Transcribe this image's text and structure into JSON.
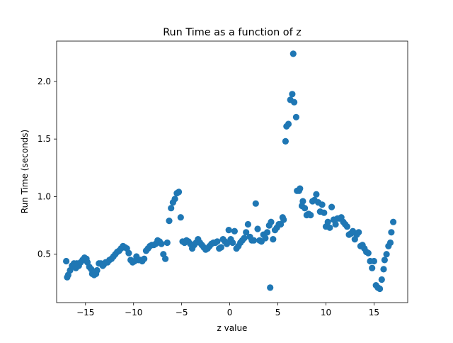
{
  "chart_data": {
    "type": "scatter",
    "title": "Run Time as a function of z",
    "xlabel": "z value",
    "ylabel": "Run Time (seconds)",
    "xlim": [
      -18.0,
      18.5
    ],
    "ylim": [
      0.08,
      2.35
    ],
    "xticks": [
      -15,
      -10,
      -5,
      0,
      5,
      10,
      15
    ],
    "xtick_labels": [
      "−15",
      "−10",
      "−5",
      "0",
      "5",
      "10",
      "15"
    ],
    "yticks": [
      0.5,
      1.0,
      1.5,
      2.0
    ],
    "ytick_labels": [
      "0.5",
      "1.0",
      "1.5",
      "2.0"
    ],
    "grid": false,
    "legend": "none",
    "marker_color": "#1f77b4",
    "series": [
      {
        "points": [
          [
            -17.0,
            0.44
          ],
          [
            -16.9,
            0.3
          ],
          [
            -16.8,
            0.32
          ],
          [
            -16.6,
            0.36
          ],
          [
            -16.4,
            0.4
          ],
          [
            -16.2,
            0.42
          ],
          [
            -16.0,
            0.38
          ],
          [
            -15.9,
            0.42
          ],
          [
            -15.7,
            0.4
          ],
          [
            -15.5,
            0.43
          ],
          [
            -15.3,
            0.45
          ],
          [
            -15.1,
            0.47
          ],
          [
            -14.9,
            0.46
          ],
          [
            -14.8,
            0.43
          ],
          [
            -14.6,
            0.39
          ],
          [
            -14.4,
            0.37
          ],
          [
            -14.3,
            0.33
          ],
          [
            -14.1,
            0.32
          ],
          [
            -13.9,
            0.33
          ],
          [
            -13.8,
            0.36
          ],
          [
            -13.6,
            0.42
          ],
          [
            -13.4,
            0.42
          ],
          [
            -13.2,
            0.4
          ],
          [
            -13.1,
            0.41
          ],
          [
            -12.9,
            0.43
          ],
          [
            -12.7,
            0.43
          ],
          [
            -12.5,
            0.45
          ],
          [
            -12.3,
            0.46
          ],
          [
            -12.1,
            0.48
          ],
          [
            -11.9,
            0.5
          ],
          [
            -11.7,
            0.52
          ],
          [
            -11.5,
            0.53
          ],
          [
            -11.3,
            0.55
          ],
          [
            -11.1,
            0.57
          ],
          [
            -10.9,
            0.56
          ],
          [
            -10.7,
            0.55
          ],
          [
            -10.5,
            0.51
          ],
          [
            -10.3,
            0.45
          ],
          [
            -10.1,
            0.43
          ],
          [
            -9.9,
            0.44
          ],
          [
            -9.7,
            0.48
          ],
          [
            -9.5,
            0.45
          ],
          [
            -9.3,
            0.45
          ],
          [
            -9.1,
            0.44
          ],
          [
            -8.9,
            0.46
          ],
          [
            -8.7,
            0.53
          ],
          [
            -8.5,
            0.55
          ],
          [
            -8.3,
            0.57
          ],
          [
            -8.1,
            0.58
          ],
          [
            -7.9,
            0.58
          ],
          [
            -7.7,
            0.59
          ],
          [
            -7.5,
            0.62
          ],
          [
            -7.3,
            0.61
          ],
          [
            -7.1,
            0.59
          ],
          [
            -6.9,
            0.5
          ],
          [
            -6.7,
            0.46
          ],
          [
            -6.5,
            0.6
          ],
          [
            -6.3,
            0.79
          ],
          [
            -6.1,
            0.9
          ],
          [
            -5.9,
            0.95
          ],
          [
            -5.7,
            0.98
          ],
          [
            -5.5,
            1.03
          ],
          [
            -5.3,
            1.04
          ],
          [
            -5.1,
            0.82
          ],
          [
            -4.9,
            0.61
          ],
          [
            -4.7,
            0.6
          ],
          [
            -4.5,
            0.62
          ],
          [
            -4.3,
            0.61
          ],
          [
            -4.1,
            0.59
          ],
          [
            -3.9,
            0.55
          ],
          [
            -3.7,
            0.58
          ],
          [
            -3.5,
            0.6
          ],
          [
            -3.3,
            0.63
          ],
          [
            -3.1,
            0.6
          ],
          [
            -2.9,
            0.58
          ],
          [
            -2.7,
            0.56
          ],
          [
            -2.5,
            0.54
          ],
          [
            -2.3,
            0.55
          ],
          [
            -2.1,
            0.57
          ],
          [
            -1.9,
            0.59
          ],
          [
            -1.7,
            0.6
          ],
          [
            -1.5,
            0.6
          ],
          [
            -1.3,
            0.61
          ],
          [
            -1.1,
            0.55
          ],
          [
            -0.9,
            0.56
          ],
          [
            -0.7,
            0.63
          ],
          [
            -0.5,
            0.61
          ],
          [
            -0.3,
            0.59
          ],
          [
            -0.1,
            0.71
          ],
          [
            0.1,
            0.63
          ],
          [
            0.3,
            0.6
          ],
          [
            0.5,
            0.7
          ],
          [
            0.7,
            0.55
          ],
          [
            0.9,
            0.57
          ],
          [
            1.1,
            0.6
          ],
          [
            1.3,
            0.62
          ],
          [
            1.5,
            0.64
          ],
          [
            1.7,
            0.69
          ],
          [
            1.9,
            0.76
          ],
          [
            2.1,
            0.65
          ],
          [
            2.3,
            0.62
          ],
          [
            2.5,
            0.62
          ],
          [
            2.7,
            0.94
          ],
          [
            2.9,
            0.72
          ],
          [
            3.1,
            0.62
          ],
          [
            3.3,
            0.61
          ],
          [
            3.5,
            0.67
          ],
          [
            3.7,
            0.64
          ],
          [
            3.9,
            0.69
          ],
          [
            4.1,
            0.75
          ],
          [
            4.2,
            0.21
          ],
          [
            4.3,
            0.78
          ],
          [
            4.5,
            0.63
          ],
          [
            4.7,
            0.71
          ],
          [
            4.9,
            0.73
          ],
          [
            5.1,
            0.76
          ],
          [
            5.3,
            0.76
          ],
          [
            5.5,
            0.82
          ],
          [
            5.6,
            0.8
          ],
          [
            5.8,
            1.48
          ],
          [
            5.9,
            1.61
          ],
          [
            6.1,
            1.63
          ],
          [
            6.3,
            1.84
          ],
          [
            6.5,
            1.89
          ],
          [
            6.6,
            2.24
          ],
          [
            6.7,
            1.82
          ],
          [
            6.9,
            1.69
          ],
          [
            7.0,
            1.05
          ],
          [
            7.2,
            1.05
          ],
          [
            7.3,
            1.07
          ],
          [
            7.5,
            0.92
          ],
          [
            7.6,
            0.96
          ],
          [
            7.8,
            0.9
          ],
          [
            8.0,
            0.84
          ],
          [
            8.2,
            0.85
          ],
          [
            8.4,
            0.84
          ],
          [
            8.6,
            0.96
          ],
          [
            8.8,
            0.97
          ],
          [
            9.0,
            1.02
          ],
          [
            9.2,
            0.95
          ],
          [
            9.4,
            0.87
          ],
          [
            9.6,
            0.93
          ],
          [
            9.8,
            0.86
          ],
          [
            10.0,
            0.74
          ],
          [
            10.2,
            0.78
          ],
          [
            10.4,
            0.73
          ],
          [
            10.6,
            0.91
          ],
          [
            10.8,
            0.8
          ],
          [
            11.0,
            0.76
          ],
          [
            11.2,
            0.81
          ],
          [
            11.4,
            0.81
          ],
          [
            11.6,
            0.82
          ],
          [
            11.8,
            0.78
          ],
          [
            12.0,
            0.76
          ],
          [
            12.2,
            0.74
          ],
          [
            12.4,
            0.67
          ],
          [
            12.6,
            0.68
          ],
          [
            12.8,
            0.7
          ],
          [
            13.0,
            0.63
          ],
          [
            13.2,
            0.67
          ],
          [
            13.4,
            0.69
          ],
          [
            13.6,
            0.57
          ],
          [
            13.8,
            0.58
          ],
          [
            14.0,
            0.55
          ],
          [
            14.2,
            0.52
          ],
          [
            14.4,
            0.51
          ],
          [
            14.6,
            0.44
          ],
          [
            14.8,
            0.38
          ],
          [
            15.0,
            0.44
          ],
          [
            15.2,
            0.23
          ],
          [
            15.4,
            0.21
          ],
          [
            15.6,
            0.2
          ],
          [
            15.8,
            0.28
          ],
          [
            16.0,
            0.37
          ],
          [
            16.1,
            0.45
          ],
          [
            16.3,
            0.5
          ],
          [
            16.5,
            0.57
          ],
          [
            16.7,
            0.6
          ],
          [
            16.8,
            0.69
          ],
          [
            17.0,
            0.78
          ]
        ]
      }
    ]
  }
}
